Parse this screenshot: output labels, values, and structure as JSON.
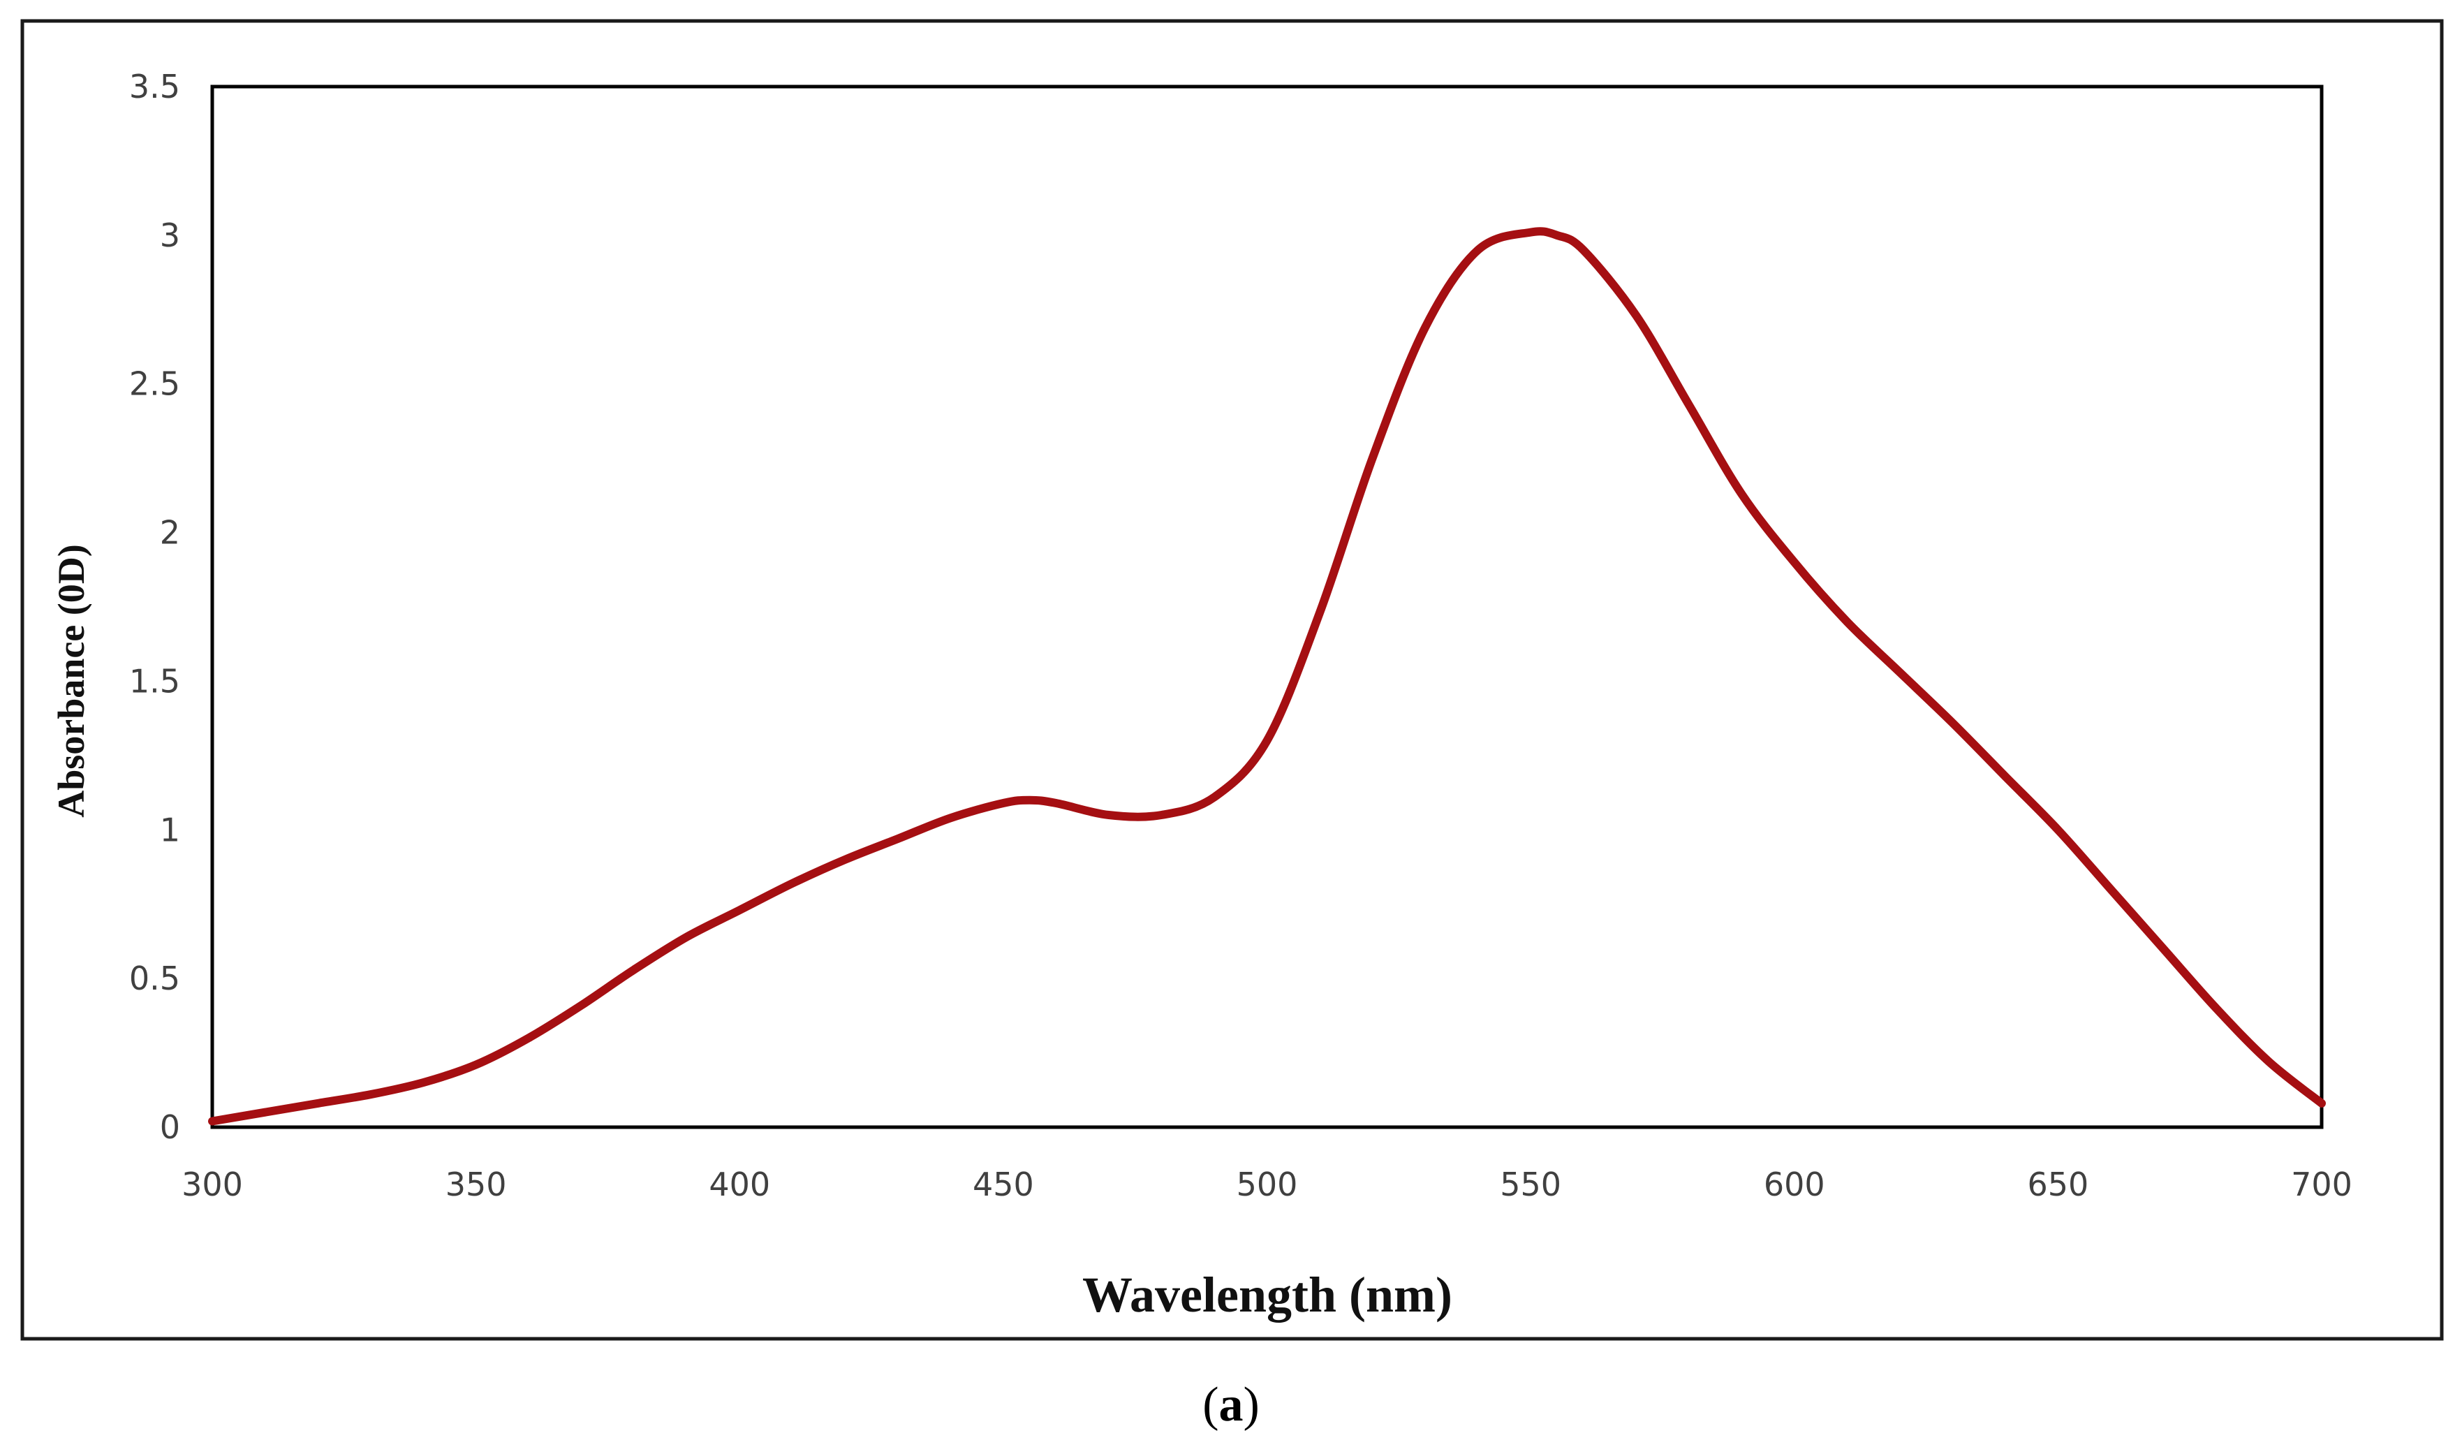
{
  "chart_data": {
    "type": "line",
    "title": "",
    "xlabel": "Wavelength (nm)",
    "ylabel": "Absorbance (0D)",
    "xlim": [
      300,
      700
    ],
    "ylim": [
      0,
      3.5
    ],
    "xticks": [
      "300",
      "350",
      "400",
      "450",
      "500",
      "550",
      "600",
      "650",
      "700"
    ],
    "yticks": [
      "0",
      "0.5",
      "1",
      "1.5",
      "2",
      "2.5",
      "3",
      "3.5"
    ],
    "grid": false,
    "legend": "none",
    "series": [
      {
        "color": "#a50f12",
        "x": [
          300,
          310,
          320,
          330,
          340,
          350,
          360,
          370,
          380,
          390,
          400,
          410,
          420,
          430,
          440,
          450,
          455,
          460,
          470,
          480,
          490,
          500,
          510,
          520,
          530,
          540,
          550,
          555,
          560,
          570,
          580,
          590,
          600,
          610,
          620,
          630,
          640,
          650,
          660,
          670,
          680,
          690,
          700
        ],
        "y": [
          0.02,
          0.05,
          0.08,
          0.11,
          0.15,
          0.21,
          0.3,
          0.41,
          0.53,
          0.64,
          0.73,
          0.82,
          0.9,
          0.97,
          1.04,
          1.09,
          1.1,
          1.09,
          1.05,
          1.05,
          1.11,
          1.3,
          1.73,
          2.25,
          2.69,
          2.95,
          3.01,
          3.0,
          2.95,
          2.73,
          2.43,
          2.13,
          1.9,
          1.7,
          1.53,
          1.36,
          1.18,
          1.0,
          0.8,
          0.6,
          0.4,
          0.22,
          0.08
        ]
      }
    ]
  },
  "caption": {
    "open_paren": "(",
    "letter": "a",
    "close_paren": ")"
  }
}
